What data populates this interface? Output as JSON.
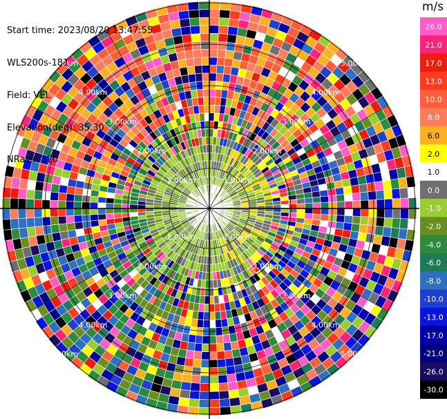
{
  "header": {
    "start_time": "Start time: 2023/08/20 13:47:55",
    "instrument": "WLS200s-181",
    "field": "Field: VEL",
    "elevation": "Elevation(deg): 35.30",
    "nrays": "NRays: 120"
  },
  "colorbar": {
    "unit": "m/s",
    "levels": [
      {
        "label": "26.0",
        "color": "#ff5cc8"
      },
      {
        "label": "21.0",
        "color": "#ff2478"
      },
      {
        "label": "17.0",
        "color": "#ee1c0e"
      },
      {
        "label": "13.0",
        "color": "#ff3c1e"
      },
      {
        "label": "10.0",
        "color": "#ff5e3a"
      },
      {
        "label": "8.0",
        "color": "#ff7c5c"
      },
      {
        "label": "6.0",
        "color": "#ffb020"
      },
      {
        "label": "2.0",
        "color": "#ffff00"
      },
      {
        "label": "1.0",
        "color": "#ffffff"
      },
      {
        "label": "0.0",
        "color": "#6f6f6f"
      },
      {
        "label": "-1.0",
        "color": "#9acd32"
      },
      {
        "label": "-2.0",
        "color": "#6b8e23"
      },
      {
        "label": "-4.0",
        "color": "#2e8b3e"
      },
      {
        "label": "-6.0",
        "color": "#1f7a5a"
      },
      {
        "label": "-8.0",
        "color": "#2f6fc0"
      },
      {
        "label": "-10.0",
        "color": "#1f3fcf"
      },
      {
        "label": "-13.0",
        "color": "#0a14e0"
      },
      {
        "label": "-17.0",
        "color": "#0000aa"
      },
      {
        "label": "-21.0",
        "color": "#000080"
      },
      {
        "label": "-26.0",
        "color": "#1a0a60"
      },
      {
        "label": "-30.0",
        "color": "#000000"
      }
    ]
  },
  "range_rings": [
    {
      "label": "1.00km"
    },
    {
      "label": "2.00km"
    },
    {
      "label": "3.00km"
    },
    {
      "label": "4.00km"
    },
    {
      "label": "5.00km"
    }
  ]
}
